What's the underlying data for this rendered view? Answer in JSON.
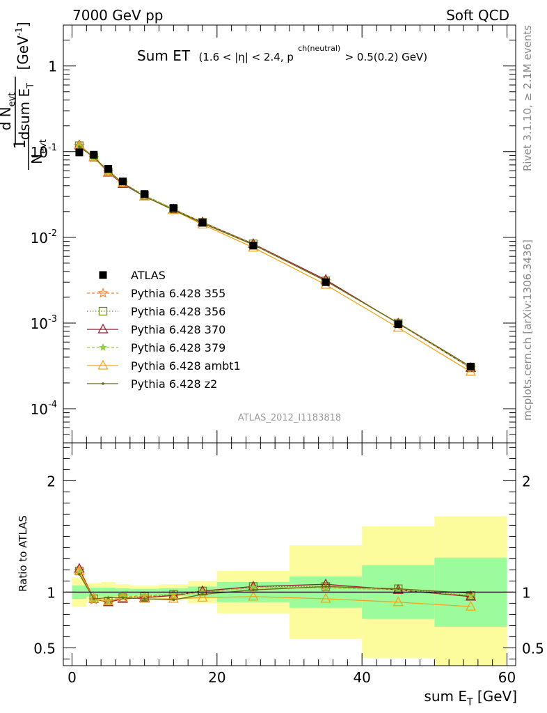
{
  "header": {
    "left": "7000 GeV pp",
    "right": "Soft QCD"
  },
  "plot_title": {
    "main": "Sum ET",
    "detail_a": "(1.6 < |η| < 2.4, p",
    "detail_sup": "ch(neutral)",
    "detail_b": " > 0.5(0.2) GeV)"
  },
  "side_labels": {
    "rivet": "Rivet 3.1.10, ≥ 2.1M events",
    "mcplots": "mcplots.cern.ch [arXiv:1306.3436]"
  },
  "analysis_id": "ATLAS_2012_I1183818",
  "y_axis_label": {
    "one": "1",
    "n": "N",
    "evt": "evt",
    "d_n": "d N",
    "dsum": "dsum E",
    "t": "T",
    "unit": "[GeV",
    "unit_exp": "-1",
    "unit_close": "]"
  },
  "x_axis_label": {
    "main": "sum E",
    "sub": "T",
    "unit": " [GeV]"
  },
  "ratio_axis_label": "Ratio to ATLAS",
  "colors": {
    "band_inner": "#9cfc9c",
    "band_outer": "#fcfc9c",
    "atlas": "#000000",
    "p355": "#ff7f2a",
    "p356": "#6b8e23",
    "p370": "#9b1b30",
    "p379": "#8ed042",
    "ambt1": "#f2a51b",
    "z2": "#6b6b12"
  },
  "chart_data": [
    {
      "type": "line",
      "title": "Sum ET",
      "xlabel": "sum E_T [GeV]",
      "ylabel": "1/N_evt dN_evt/dsum E_T [GeV^-1]",
      "yscale": "log",
      "xlim": [
        -1.2,
        61.2
      ],
      "ylim": [
        4e-05,
        3.0
      ],
      "x_ticks": [
        0,
        20,
        40,
        60
      ],
      "y_ticks": [
        {
          "value": 1,
          "label": "1"
        },
        {
          "value": 0.1,
          "label": "10",
          "exp": "-1"
        },
        {
          "value": 0.01,
          "label": "10",
          "exp": "-2"
        },
        {
          "value": 0.001,
          "label": "10",
          "exp": "-3"
        },
        {
          "value": 0.0001,
          "label": "10",
          "exp": "-4"
        }
      ],
      "data": {
        "name": "ATLAS",
        "x": [
          1,
          3,
          5,
          7,
          10,
          14,
          18,
          25,
          35,
          45,
          55
        ],
        "y": [
          0.098,
          0.092,
          0.063,
          0.045,
          0.032,
          0.022,
          0.0148,
          0.008,
          0.003,
          0.00097,
          0.00031
        ]
      },
      "series": [
        {
          "name": "Pythia 6.428 355",
          "key": "p355",
          "marker": "star",
          "dash": "4,3",
          "values": [
            0.117,
            0.085,
            0.058,
            0.043,
            0.031,
            0.0215,
            0.0149,
            0.0083,
            0.0031,
            0.00099,
            0.0003
          ]
        },
        {
          "name": "Pythia 6.428 356",
          "key": "p356",
          "marker": "square",
          "dash": "1.5,2.5",
          "values": [
            0.117,
            0.086,
            0.058,
            0.043,
            0.031,
            0.0215,
            0.015,
            0.0084,
            0.0031,
            0.001,
            0.0003
          ]
        },
        {
          "name": "Pythia 6.428 370",
          "key": "p370",
          "marker": "triangle",
          "dash": "",
          "values": [
            0.119,
            0.086,
            0.057,
            0.042,
            0.03,
            0.0212,
            0.015,
            0.0084,
            0.0032,
            0.00099,
            0.0003
          ]
        },
        {
          "name": "Pythia 6.428 379",
          "key": "p379",
          "marker": "star",
          "dash": "4,3",
          "values": [
            0.116,
            0.085,
            0.058,
            0.043,
            0.031,
            0.0215,
            0.0149,
            0.0083,
            0.0031,
            0.00099,
            0.0003
          ]
        },
        {
          "name": "Pythia 6.428 ambt1",
          "key": "ambt1",
          "marker": "triangle",
          "dash": "",
          "values": [
            0.117,
            0.086,
            0.058,
            0.043,
            0.03,
            0.0208,
            0.0141,
            0.0076,
            0.0028,
            0.00088,
            0.00027
          ]
        },
        {
          "name": "Pythia 6.428 z2",
          "key": "z2",
          "marker": "dot",
          "dash": "",
          "values": [
            0.114,
            0.086,
            0.06,
            0.043,
            0.03,
            0.0208,
            0.0146,
            0.0082,
            0.0031,
            0.001,
            0.00031
          ]
        }
      ]
    },
    {
      "type": "line",
      "title": "Ratio to ATLAS",
      "xlabel": "sum E_T [GeV]",
      "ylabel": "Ratio to ATLAS",
      "xlim": [
        -1.2,
        61.2
      ],
      "ylim": [
        0.34,
        2.34
      ],
      "x_ticks": [
        0,
        20,
        40,
        60
      ],
      "y_ticks": [
        0.5,
        1,
        2
      ],
      "bins": [
        {
          "lo": 0,
          "hi": 2,
          "inner": [
            0.94,
            1.06
          ],
          "outer": [
            0.87,
            1.13
          ]
        },
        {
          "lo": 2,
          "hi": 4,
          "inner": [
            0.96,
            1.04
          ],
          "outer": [
            0.92,
            1.08
          ]
        },
        {
          "lo": 4,
          "hi": 6,
          "inner": [
            0.96,
            1.04
          ],
          "outer": [
            0.91,
            1.09
          ]
        },
        {
          "lo": 6,
          "hi": 8,
          "inner": [
            0.965,
            1.035
          ],
          "outer": [
            0.93,
            1.07
          ]
        },
        {
          "lo": 8,
          "hi": 12,
          "inner": [
            0.97,
            1.03
          ],
          "outer": [
            0.94,
            1.06
          ]
        },
        {
          "lo": 12,
          "hi": 16,
          "inner": [
            0.965,
            1.035
          ],
          "outer": [
            0.93,
            1.07
          ]
        },
        {
          "lo": 16,
          "hi": 20,
          "inner": [
            0.95,
            1.05
          ],
          "outer": [
            0.9,
            1.1
          ]
        },
        {
          "lo": 20,
          "hi": 30,
          "inner": [
            0.91,
            1.09
          ],
          "outer": [
            0.81,
            1.19
          ]
        },
        {
          "lo": 30,
          "hi": 40,
          "inner": [
            0.86,
            1.14
          ],
          "outer": [
            0.58,
            1.42
          ]
        },
        {
          "lo": 40,
          "hi": 50,
          "inner": [
            0.76,
            1.24
          ],
          "outer": [
            0.41,
            1.59
          ]
        },
        {
          "lo": 50,
          "hi": 60,
          "inner": [
            0.69,
            1.31
          ],
          "outer": [
            0.32,
            1.68
          ]
        }
      ],
      "reference_line": 1,
      "series": [
        {
          "name": "Pythia 6.428 355",
          "key": "p355",
          "values": [
            1.19,
            0.93,
            0.92,
            0.96,
            0.96,
            0.97,
            1.0,
            1.04,
            1.04,
            1.02,
            0.97
          ]
        },
        {
          "name": "Pythia 6.428 356",
          "key": "p356",
          "values": [
            1.19,
            0.94,
            0.92,
            0.95,
            0.96,
            0.98,
            1.01,
            1.05,
            1.05,
            1.03,
            0.97
          ]
        },
        {
          "name": "Pythia 6.428 370",
          "key": "p370",
          "values": [
            1.21,
            0.94,
            0.91,
            0.94,
            0.95,
            0.97,
            1.01,
            1.05,
            1.07,
            1.02,
            0.96
          ]
        },
        {
          "name": "Pythia 6.428 379",
          "key": "p379",
          "values": [
            1.18,
            0.93,
            0.92,
            0.96,
            0.97,
            0.98,
            1.0,
            1.04,
            1.04,
            1.02,
            0.97
          ]
        },
        {
          "name": "Pythia 6.428 ambt1",
          "key": "ambt1",
          "values": [
            1.19,
            0.94,
            0.92,
            0.95,
            0.94,
            0.94,
            0.95,
            0.96,
            0.94,
            0.91,
            0.87
          ]
        },
        {
          "name": "Pythia 6.428 z2",
          "key": "z2",
          "values": [
            1.16,
            0.94,
            0.95,
            0.95,
            0.94,
            0.93,
            0.98,
            1.02,
            1.05,
            1.03,
            0.99
          ]
        }
      ]
    }
  ]
}
